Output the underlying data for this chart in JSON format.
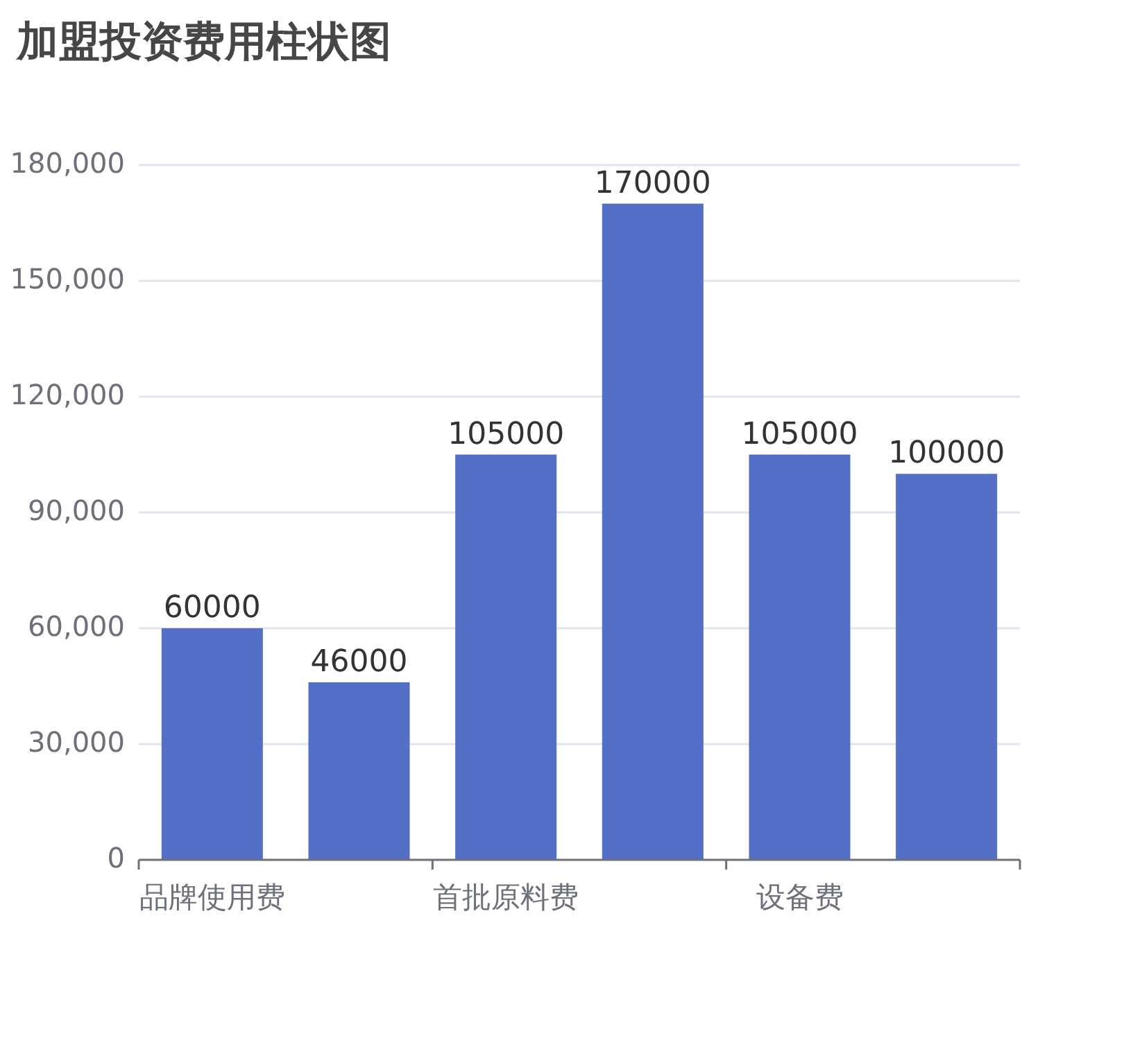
{
  "chart_data": {
    "type": "bar",
    "title": "加盟投资费用柱状图",
    "categories": [
      "品牌使用费",
      null,
      "首批原料费",
      null,
      "设备费",
      null
    ],
    "values": [
      60000,
      46000,
      105000,
      170000,
      105000,
      100000
    ],
    "color": "#5470c6",
    "ylim": [
      0,
      180000
    ],
    "yticks": [
      {
        "value": 0,
        "label": "0"
      },
      {
        "value": 30000,
        "label": "30,000"
      },
      {
        "value": 60000,
        "label": "60,000"
      },
      {
        "value": 90000,
        "label": "90,000"
      },
      {
        "value": 120000,
        "label": "120,000"
      },
      {
        "value": 150000,
        "label": "150,000"
      },
      {
        "value": 180000,
        "label": "180,000"
      }
    ],
    "grid": "y",
    "data_labels": true
  }
}
